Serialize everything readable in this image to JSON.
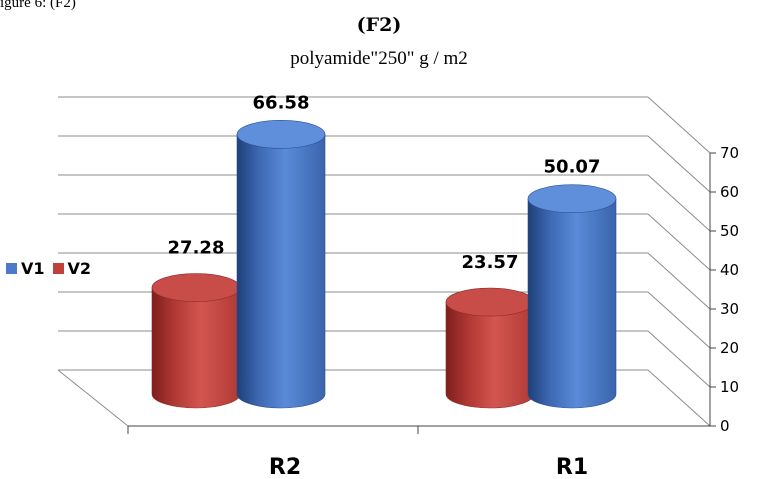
{
  "top_caption": "igure 6: (F2)",
  "chart_data": {
    "type": "bar",
    "title": "(F2)",
    "subtitle": "polyamide\"250\" g / m2",
    "categories": [
      "R2",
      "R1"
    ],
    "series": [
      {
        "name": "V1",
        "color": "#4a7ac9",
        "values": [
          66.58,
          50.07
        ]
      },
      {
        "name": "V2",
        "color": "#c0403c",
        "values": [
          27.28,
          23.57
        ]
      }
    ],
    "data_labels": [
      [
        "66.58",
        "50.07"
      ],
      [
        "27.28",
        "23.57"
      ]
    ],
    "ylim": [
      0,
      70
    ],
    "yticks": [
      "0",
      "10",
      "20",
      "30",
      "40",
      "50",
      "60",
      "70"
    ],
    "grid": true,
    "legend_position": "left",
    "style": "3d-cylinder"
  }
}
